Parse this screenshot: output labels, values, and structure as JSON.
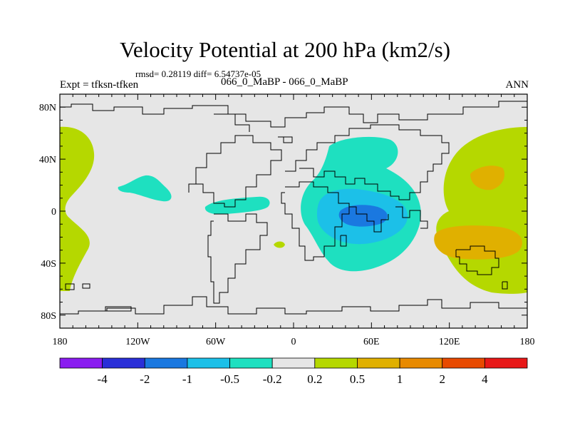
{
  "chart_data": {
    "type": "contour-map",
    "title": "Velocity Potential at 200 hPa (km2/s)",
    "stats_text": "rmsd= 0.28119  diff= 6.54737e-05",
    "experiment_label": "Expt = tfksn-tfken",
    "subtitle": "066_0_MaBP - 066_0_MaBP",
    "season": "ANN",
    "x_axis": {
      "range": [
        -180,
        180
      ],
      "ticks": [
        {
          "value": -180,
          "label": "180"
        },
        {
          "value": -120,
          "label": "120W"
        },
        {
          "value": -60,
          "label": "60W"
        },
        {
          "value": 0,
          "label": "0"
        },
        {
          "value": 60,
          "label": "60E"
        },
        {
          "value": 120,
          "label": "120E"
        },
        {
          "value": 180,
          "label": "180"
        }
      ]
    },
    "y_axis": {
      "range": [
        -90,
        90
      ],
      "ticks": [
        {
          "value": 80,
          "label": "80N"
        },
        {
          "value": 40,
          "label": "40N"
        },
        {
          "value": 0,
          "label": "0"
        },
        {
          "value": -40,
          "label": "40S"
        },
        {
          "value": -80,
          "label": "80S"
        }
      ]
    },
    "colorbar": {
      "levels": [
        "-4",
        "-2",
        "-1",
        "-0.5",
        "-0.2",
        "0.2",
        "0.5",
        "1",
        "2",
        "4"
      ],
      "colors": [
        "#8a1cf0",
        "#2a2fd8",
        "#1a78e0",
        "#1cc0e8",
        "#1ee0c0",
        "#e6e6e6",
        "#b5d800",
        "#e0b000",
        "#e88a00",
        "#e84a00",
        "#e81818"
      ]
    },
    "regions": [
      {
        "name": "pos-west-pacific-edge",
        "level": "0.2 to 0.5",
        "color": "#b5d800"
      },
      {
        "name": "neg-east-pacific-blob",
        "level": "-0.5 to -0.2",
        "color": "#1ee0c0"
      },
      {
        "name": "neg-atlantic-blob",
        "level": "-0.5 to -0.2",
        "color": "#1ee0c0"
      },
      {
        "name": "pos-atlantic-spot",
        "level": "0.2 to 0.5",
        "color": "#b5d800"
      },
      {
        "name": "neg-africa-indian-ocean",
        "level": "-0.5 to -0.2",
        "color": "#1ee0c0"
      },
      {
        "name": "neg-indian-ocean-inner",
        "level": "-1 to -0.5",
        "color": "#1cc0e8"
      },
      {
        "name": "neg-indian-ocean-core",
        "level": "-2 to -1",
        "color": "#1a78e0"
      },
      {
        "name": "pos-west-pacific",
        "level": "0.2 to 0.5",
        "color": "#b5d800"
      },
      {
        "name": "pos-west-pacific-north-core",
        "level": "0.5 to 1",
        "color": "#e0b000"
      },
      {
        "name": "pos-west-pacific-south-core",
        "level": "0.5 to 1",
        "color": "#e0b000"
      }
    ],
    "background_color": "#e6e6e6",
    "coastline_color": "#000000"
  }
}
